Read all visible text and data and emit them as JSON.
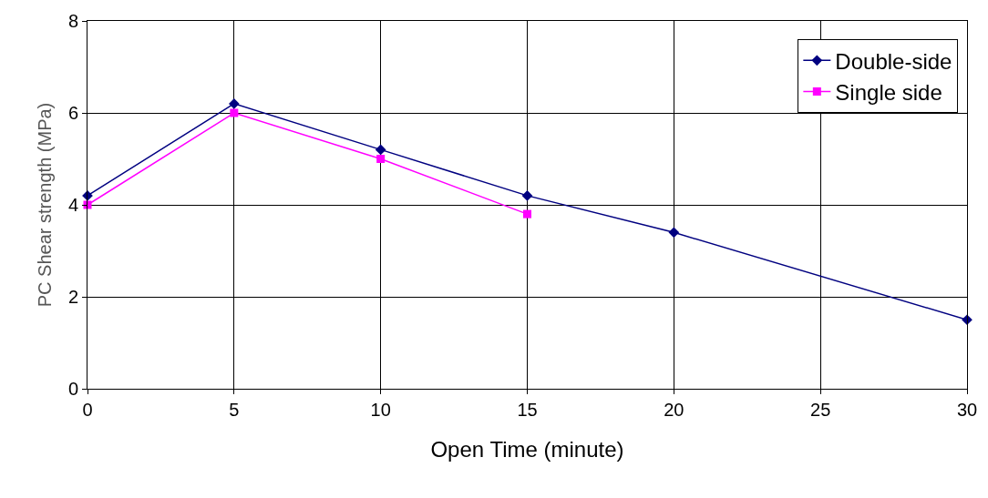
{
  "chart_data": {
    "type": "line",
    "xlabel": "Open Time (minute)",
    "ylabel": "PC Shear strength (MPa)",
    "xlim": [
      0,
      30
    ],
    "xticks": [
      0,
      5,
      10,
      15,
      20,
      25,
      30
    ],
    "ylim": [
      0,
      8
    ],
    "yticks": [
      0,
      2,
      4,
      6,
      8
    ],
    "grid": true,
    "legend": "top right",
    "series": [
      {
        "name": "Double-side",
        "color": "#000080",
        "marker": "diamond",
        "x": [
          0,
          5,
          10,
          15,
          20,
          30
        ],
        "values": [
          4.2,
          6.2,
          5.2,
          4.2,
          3.4,
          1.5
        ]
      },
      {
        "name": "Single side",
        "color": "#ff00ff",
        "marker": "square",
        "x": [
          0,
          5,
          10,
          15
        ],
        "values": [
          4.0,
          6.0,
          5.0,
          3.8
        ]
      }
    ]
  }
}
